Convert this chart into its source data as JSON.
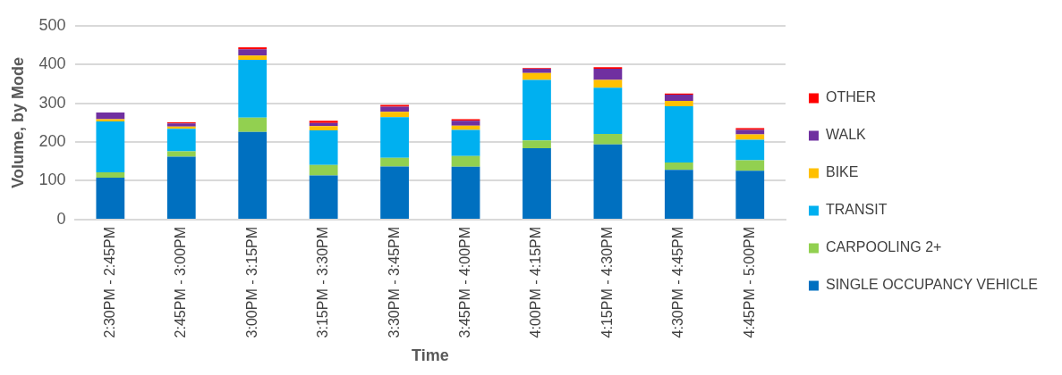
{
  "chart_data": {
    "type": "bar",
    "stacked": true,
    "xlabel": "Time",
    "ylabel": "Volume, by Mode",
    "categories": [
      "2:30PM - 2:45PM",
      "2:45PM - 3:00PM",
      "3:00PM - 3:15PM",
      "3:15PM - 3:30PM",
      "3:30PM - 3:45PM",
      "3:45PM - 4:00PM",
      "4:00PM - 4:15PM",
      "4:15PM - 4:30PM",
      "4:30PM - 4:45PM",
      "4:45PM - 5:00PM"
    ],
    "series": [
      {
        "name": "SINGLE OCCUPANCY VEHICLE",
        "color": "#0070c0",
        "values": [
          108,
          162,
          226,
          114,
          137,
          136,
          184,
          194,
          128,
          126
        ]
      },
      {
        "name": "CARPOOLING 2+",
        "color": "#92d050",
        "values": [
          14,
          14,
          37,
          27,
          22,
          28,
          20,
          27,
          19,
          27
        ]
      },
      {
        "name": "TRANSIT",
        "color": "#00b0f0",
        "values": [
          131,
          58,
          149,
          89,
          105,
          67,
          156,
          119,
          145,
          53
        ]
      },
      {
        "name": "BIKE",
        "color": "#ffc000",
        "values": [
          6,
          6,
          11,
          11,
          14,
          11,
          18,
          20,
          14,
          14
        ]
      },
      {
        "name": "WALK",
        "color": "#7030a0",
        "values": [
          17,
          8,
          16,
          8,
          13,
          13,
          11,
          29,
          16,
          11
        ]
      },
      {
        "name": "OTHER",
        "color": "#ff0000",
        "values": [
          null,
          3,
          5,
          6,
          5,
          4,
          2,
          4,
          3,
          5
        ]
      }
    ],
    "ylim": [
      0,
      500
    ],
    "yticks": [
      0,
      100,
      200,
      300,
      400,
      500
    ],
    "grid": "y",
    "legend": "right"
  }
}
